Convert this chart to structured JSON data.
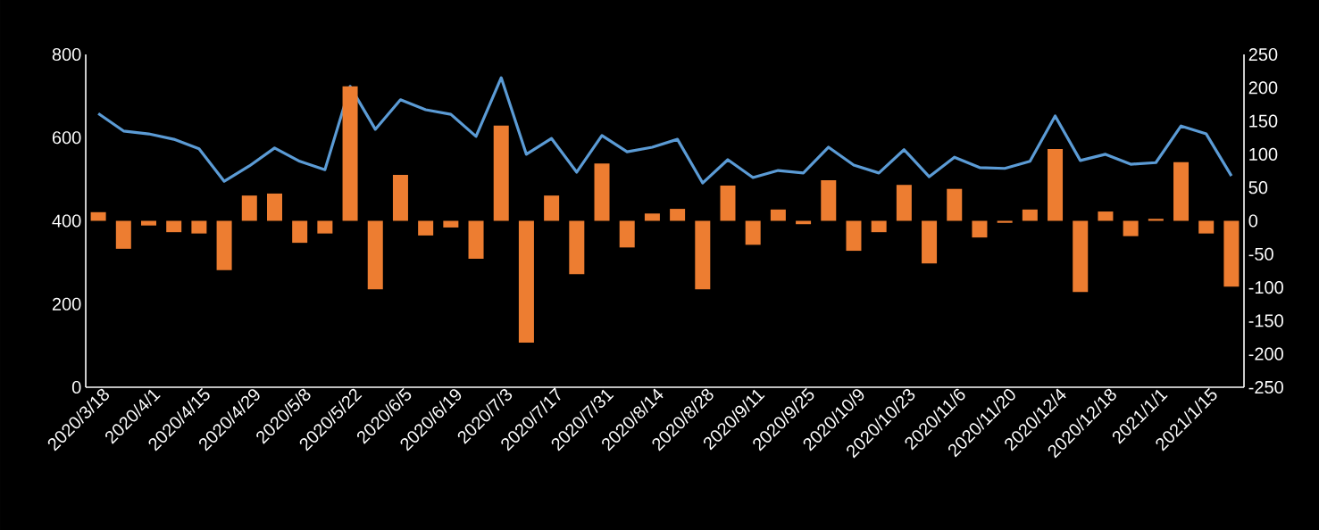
{
  "chart_data": {
    "type": "bar",
    "categories": [
      "2020/3/18",
      null,
      "2020/4/1",
      null,
      "2020/4/15",
      null,
      "2020/4/29",
      null,
      "2020/5/8",
      null,
      "2020/5/22",
      null,
      "2020/6/5",
      null,
      "2020/6/19",
      null,
      "2020/7/3",
      null,
      "2020/7/17",
      null,
      "2020/7/31",
      null,
      "2020/8/14",
      null,
      "2020/8/28",
      null,
      "2020/9/11",
      null,
      "2020/9/25",
      null,
      "2020/10/9",
      null,
      "2020/10/23",
      null,
      "2020/11/6",
      null,
      "2020/11/20",
      null,
      "2020/12/4",
      null,
      "2020/12/18",
      null,
      "2021/1/1",
      null,
      "2021/1/15",
      null
    ],
    "series": [
      {
        "type": "line",
        "axis": "y",
        "color": "#5b9bd5",
        "values": [
          658,
          616,
          609,
          596,
          573,
          495,
          532,
          575,
          543,
          523,
          723,
          620,
          691,
          667,
          656,
          603,
          744,
          560,
          598,
          517,
          605,
          566,
          577,
          596,
          491,
          547,
          504,
          521,
          515,
          577,
          534,
          515,
          571,
          506,
          553,
          528,
          526,
          543,
          652,
          545,
          560,
          536,
          540,
          628,
          609,
          508
        ]
      },
      {
        "axis": "y2",
        "color": "#ed7d31",
        "values": [
          13,
          -42,
          -7,
          -17,
          -19,
          -74,
          38,
          41,
          -33,
          -19,
          202,
          -103,
          69,
          -22,
          -10,
          -57,
          143,
          -183,
          38,
          -80,
          86,
          -40,
          11,
          18,
          -103,
          53,
          -36,
          17,
          -5,
          61,
          -45,
          -17,
          54,
          -64,
          48,
          -25,
          -3,
          17,
          108,
          -107,
          14,
          -23,
          3,
          88,
          -19,
          -99
        ]
      }
    ],
    "ylim": [
      0,
      800
    ],
    "yticks": [
      0,
      200,
      400,
      600,
      800
    ],
    "y2lim": [
      -250,
      250
    ],
    "y2ticks": [
      -250,
      -200,
      -150,
      -100,
      -50,
      0,
      50,
      100,
      150,
      200,
      250
    ],
    "grid": false,
    "legend": false,
    "marker": "none",
    "line_style": "solid"
  }
}
